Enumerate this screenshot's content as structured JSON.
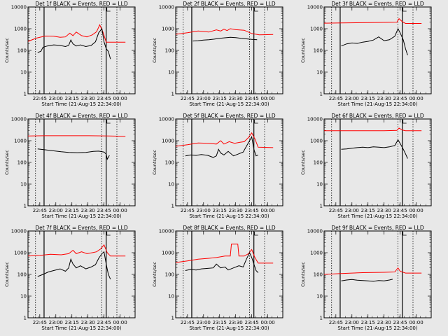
{
  "chart_data": [
    {
      "type": "line",
      "title": "Det 1f BLACK = Events, RED = LLD",
      "xlabel": "Start Time (21-Aug-15 22:34:00)",
      "ylabel": "Counts/sec",
      "yscale": "log",
      "ylim": [
        1,
        10000
      ],
      "y_ticks": [
        "1",
        "10",
        "100",
        "1000",
        "10000"
      ],
      "x_ticks": [
        "22:45",
        "23:00",
        "23:15",
        "23:30",
        "23:45",
        "00:00"
      ],
      "series": [
        {
          "color": "#ff0000",
          "x": [
            "22:34",
            "22:42",
            "22:50",
            "22:58",
            "23:04",
            "23:09",
            "23:13",
            "23:16",
            "23:19",
            "23:24",
            "23:29",
            "23:34",
            "23:38",
            "23:41",
            "23:44",
            "23:47",
            "23:50",
            "00:05"
          ],
          "y": [
            260,
            370,
            460,
            450,
            400,
            420,
            620,
            480,
            700,
            480,
            420,
            520,
            720,
            1500,
            700,
            240,
            240,
            240
          ]
        },
        {
          "color": "#000000",
          "x": [
            "22:43",
            "22:46",
            "22:48",
            "22:52",
            "22:58",
            "23:04",
            "23:09",
            "23:12",
            "23:14",
            "23:16",
            "23:19",
            "23:23",
            "23:28",
            "23:33",
            "23:37",
            "23:40",
            "23:43",
            "23:45",
            "23:47",
            "23:49",
            "23:51"
          ],
          "y": [
            80,
            90,
            140,
            160,
            180,
            170,
            150,
            170,
            300,
            200,
            160,
            180,
            150,
            170,
            250,
            650,
            1000,
            250,
            120,
            90,
            40
          ]
        }
      ]
    },
    {
      "type": "line",
      "title": "Det 2f BLACK = Events, RED = LLD",
      "xlabel": "Start Time (21-Aug-15 22:34:00)",
      "ylabel": "Counts/sec",
      "yscale": "log",
      "ylim": [
        1,
        10000
      ],
      "y_ticks": [
        "1",
        "10",
        "100",
        "1000",
        "10000"
      ],
      "x_ticks": [
        "22:45",
        "23:00",
        "23:15",
        "23:30",
        "23:45",
        "00:00"
      ],
      "series": [
        {
          "color": "#ff0000",
          "x": [
            "22:34",
            "22:45",
            "22:55",
            "23:05",
            "23:12",
            "23:16",
            "23:19",
            "23:22",
            "23:25",
            "23:30",
            "23:38",
            "23:45",
            "23:52",
            "00:05"
          ],
          "y": [
            550,
            650,
            780,
            700,
            880,
            780,
            950,
            820,
            1000,
            900,
            850,
            600,
            520,
            540
          ]
        },
        {
          "color": "#000000",
          "x": [
            "22:50",
            "22:55",
            "23:00",
            "23:05",
            "23:10",
            "23:15",
            "23:20",
            "23:25",
            "23:30",
            "23:35",
            "23:40",
            "23:45",
            "23:50"
          ],
          "y": [
            270,
            280,
            300,
            310,
            330,
            360,
            380,
            400,
            390,
            360,
            340,
            320,
            310
          ]
        }
      ]
    },
    {
      "type": "line",
      "title": "Det 3f BLACK = Events, RED = LLD",
      "xlabel": "Start Time (21-Aug-15 22:34:00)",
      "ylabel": "Counts/sec",
      "yscale": "log",
      "ylim": [
        1,
        10000
      ],
      "y_ticks": [
        "1",
        "10",
        "100",
        "1000",
        "10000"
      ],
      "x_ticks": [
        "22:45",
        "23:00",
        "23:15",
        "23:30",
        "23:45",
        "00:00"
      ],
      "series": [
        {
          "color": "#ff0000",
          "x": [
            "22:34",
            "22:50",
            "23:10",
            "23:30",
            "23:42",
            "23:44",
            "23:47",
            "23:50",
            "00:05"
          ],
          "y": [
            1800,
            1850,
            1900,
            1950,
            2000,
            2900,
            2100,
            1750,
            1750
          ]
        },
        {
          "color": "#000000",
          "x": [
            "22:50",
            "22:55",
            "23:00",
            "23:05",
            "23:10",
            "23:15",
            "23:20",
            "23:25",
            "23:30",
            "23:35",
            "23:40",
            "23:43",
            "23:45",
            "23:48",
            "23:50",
            "23:52"
          ],
          "y": [
            160,
            200,
            220,
            210,
            240,
            260,
            300,
            420,
            280,
            310,
            450,
            1000,
            650,
            300,
            120,
            60
          ]
        }
      ]
    },
    {
      "type": "line",
      "title": "Det 4f BLACK = Events, RED = LLD",
      "xlabel": "Start Time (21-Aug-15 22:34:00)",
      "ylabel": "Counts/sec",
      "yscale": "log",
      "ylim": [
        1,
        10000
      ],
      "y_ticks": [
        "1",
        "10",
        "100",
        "1000",
        "10000"
      ],
      "x_ticks": [
        "22:45",
        "23:00",
        "23:15",
        "23:30",
        "23:45",
        "00:00"
      ],
      "series": [
        {
          "color": "#ff0000",
          "x": [
            "22:34",
            "22:50",
            "23:10",
            "23:30",
            "23:50",
            "00:05"
          ],
          "y": [
            1650,
            1700,
            1700,
            1700,
            1650,
            1600
          ]
        },
        {
          "color": "#000000",
          "x": [
            "22:43",
            "22:50",
            "22:58",
            "23:05",
            "23:12",
            "23:20",
            "23:28",
            "23:35",
            "23:40",
            "23:45",
            "23:47",
            "23:48",
            "23:50"
          ],
          "y": [
            420,
            380,
            340,
            310,
            290,
            280,
            290,
            320,
            330,
            300,
            240,
            140,
            210
          ]
        }
      ]
    },
    {
      "type": "line",
      "title": "Det 5f BLACK = Events, RED = LLD",
      "xlabel": "Start Time (21-Aug-15 22:34:00)",
      "ylabel": "Counts/sec",
      "yscale": "log",
      "ylim": [
        1,
        10000
      ],
      "y_ticks": [
        "1",
        "10",
        "100",
        "1000",
        "10000"
      ],
      "x_ticks": [
        "22:45",
        "23:00",
        "23:15",
        "23:30",
        "23:45",
        "00:00"
      ],
      "series": [
        {
          "color": "#ff0000",
          "x": [
            "22:34",
            "22:45",
            "22:55",
            "23:05",
            "23:12",
            "23:16",
            "23:19",
            "23:24",
            "23:29",
            "23:34",
            "23:38",
            "23:42",
            "23:45",
            "23:48",
            "23:51",
            "00:05"
          ],
          "y": [
            550,
            650,
            780,
            760,
            700,
            1000,
            700,
            900,
            760,
            850,
            900,
            1400,
            2300,
            1200,
            500,
            480
          ]
        },
        {
          "color": "#000000",
          "x": [
            "22:43",
            "22:48",
            "22:53",
            "22:58",
            "23:04",
            "23:09",
            "23:12",
            "23:14",
            "23:16",
            "23:19",
            "23:23",
            "23:28",
            "23:33",
            "23:37",
            "23:40",
            "23:43",
            "23:45",
            "23:47",
            "23:49",
            "23:51"
          ],
          "y": [
            200,
            220,
            210,
            230,
            210,
            170,
            200,
            400,
            270,
            220,
            320,
            200,
            250,
            300,
            550,
            1000,
            1500,
            400,
            200,
            220
          ]
        }
      ]
    },
    {
      "type": "line",
      "title": "Det 6f BLACK = Events, RED = LLD",
      "xlabel": "Start Time (21-Aug-15 22:34:00)",
      "ylabel": "Counts/sec",
      "yscale": "log",
      "ylim": [
        1,
        10000
      ],
      "y_ticks": [
        "1",
        "10",
        "100",
        "1000",
        "10000"
      ],
      "x_ticks": [
        "22:45",
        "23:00",
        "23:15",
        "23:30",
        "23:45",
        "00:00"
      ],
      "series": [
        {
          "color": "#ff0000",
          "x": [
            "22:34",
            "22:50",
            "23:10",
            "23:30",
            "23:42",
            "23:44",
            "23:47",
            "23:50",
            "00:05"
          ],
          "y": [
            2900,
            2900,
            2900,
            2900,
            3000,
            3800,
            3100,
            2900,
            2900
          ]
        },
        {
          "color": "#000000",
          "x": [
            "22:50",
            "22:55",
            "23:00",
            "23:05",
            "23:10",
            "23:15",
            "23:20",
            "23:25",
            "23:30",
            "23:35",
            "23:40",
            "23:43",
            "23:45",
            "23:48",
            "23:50",
            "23:52"
          ],
          "y": [
            400,
            420,
            450,
            480,
            500,
            480,
            520,
            500,
            480,
            520,
            600,
            1100,
            750,
            400,
            250,
            150
          ]
        }
      ]
    },
    {
      "type": "line",
      "title": "Det 7f BLACK = Events, RED = LLD",
      "xlabel": "Start Time (21-Aug-15 22:34:00)",
      "ylabel": "Counts/sec",
      "yscale": "log",
      "ylim": [
        1,
        10000
      ],
      "y_ticks": [
        "1",
        "10",
        "100",
        "1000",
        "10000"
      ],
      "x_ticks": [
        "22:45",
        "23:00",
        "23:15",
        "23:30",
        "23:45",
        "00:00"
      ],
      "series": [
        {
          "color": "#ff0000",
          "x": [
            "22:34",
            "22:45",
            "22:55",
            "23:05",
            "23:12",
            "23:16",
            "23:19",
            "23:24",
            "23:29",
            "23:34",
            "23:38",
            "23:42",
            "23:45",
            "23:48",
            "23:51",
            "00:05"
          ],
          "y": [
            700,
            750,
            850,
            800,
            900,
            1300,
            900,
            1100,
            900,
            1000,
            1100,
            1500,
            2300,
            1000,
            700,
            700
          ]
        },
        {
          "color": "#000000",
          "x": [
            "22:43",
            "22:48",
            "22:53",
            "22:58",
            "23:04",
            "23:09",
            "23:12",
            "23:14",
            "23:16",
            "23:19",
            "23:23",
            "23:28",
            "23:33",
            "23:37",
            "23:40",
            "23:43",
            "23:45",
            "23:47",
            "23:49",
            "23:51"
          ],
          "y": [
            80,
            100,
            130,
            150,
            180,
            140,
            200,
            500,
            300,
            200,
            250,
            180,
            220,
            280,
            550,
            900,
            1100,
            300,
            100,
            60
          ]
        }
      ]
    },
    {
      "type": "line",
      "title": "Det 8f BLACK = Events, RED = LLD",
      "xlabel": "Start Time (21-Aug-15 22:34:00)",
      "ylabel": "Counts/sec",
      "yscale": "log",
      "ylim": [
        1,
        10000
      ],
      "y_ticks": [
        "1",
        "10",
        "100",
        "1000",
        "10000"
      ],
      "x_ticks": [
        "22:45",
        "23:00",
        "23:15",
        "23:30",
        "23:45",
        "00:00"
      ],
      "series": [
        {
          "color": "#ff0000",
          "x": [
            "22:34",
            "22:45",
            "22:55",
            "23:05",
            "23:12",
            "23:20",
            "23:25",
            "23:26",
            "23:32",
            "23:33",
            "23:38",
            "23:42",
            "23:45",
            "23:48",
            "23:51",
            "00:05"
          ],
          "y": [
            350,
            420,
            500,
            550,
            600,
            700,
            700,
            2500,
            2500,
            700,
            700,
            900,
            1400,
            600,
            330,
            330
          ]
        },
        {
          "color": "#000000",
          "x": [
            "22:43",
            "22:48",
            "22:53",
            "22:58",
            "23:04",
            "23:09",
            "23:12",
            "23:16",
            "23:20",
            "23:23",
            "23:28",
            "23:33",
            "23:37",
            "23:40",
            "23:43",
            "23:45",
            "23:47",
            "23:49",
            "23:51"
          ],
          "y": [
            150,
            170,
            160,
            180,
            190,
            200,
            300,
            200,
            220,
            160,
            200,
            250,
            220,
            500,
            1000,
            600,
            300,
            150,
            120
          ]
        }
      ]
    },
    {
      "type": "line",
      "title": "Det 9f BLACK = Events, RED = LLD",
      "xlabel": "Start Time (21-Aug-15 22:34:00)",
      "ylabel": "Counts/sec",
      "yscale": "log",
      "ylim": [
        1,
        10000
      ],
      "y_ticks": [
        "1",
        "10",
        "100",
        "1000",
        "10000"
      ],
      "x_ticks": [
        "22:45",
        "23:00",
        "23:15",
        "23:30",
        "23:45",
        "00:00"
      ],
      "series": [
        {
          "color": "#ff0000",
          "x": [
            "22:34",
            "22:50",
            "23:10",
            "23:30",
            "23:40",
            "23:43",
            "23:45",
            "23:50",
            "00:05"
          ],
          "y": [
            100,
            110,
            120,
            125,
            130,
            200,
            140,
            115,
            115
          ]
        },
        {
          "color": "#000000",
          "x": [
            "22:50",
            "22:55",
            "23:00",
            "23:05",
            "23:10",
            "23:15",
            "23:20",
            "23:25",
            "23:30",
            "23:35",
            "23:38"
          ],
          "y": [
            50,
            55,
            58,
            54,
            52,
            50,
            48,
            52,
            50,
            55,
            60
          ]
        }
      ]
    }
  ]
}
